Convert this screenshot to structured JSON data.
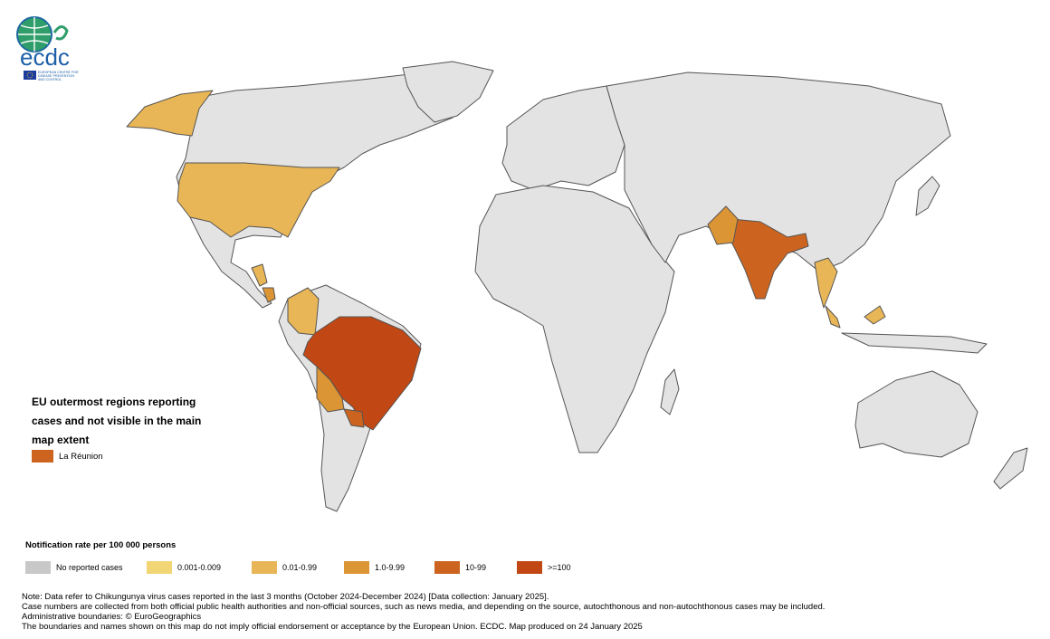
{
  "logo": {
    "name": "ecdc",
    "subtitle_lines": [
      "EUROPEAN CENTRE FOR",
      "DISEASE PREVENTION",
      "AND CONTROL"
    ]
  },
  "outermost": {
    "title": "EU outermost regions reporting cases and not visible in the main map extent",
    "items": [
      {
        "label": "La Réunion",
        "color": "#cc6420"
      }
    ]
  },
  "legend": {
    "title": "Notification rate per 100 000 persons",
    "items": [
      {
        "label": "No reported cases",
        "color": "#c8c8c8"
      },
      {
        "label": "0.001-0.009",
        "color": "#f2d574"
      },
      {
        "label": "0.01-0.99",
        "color": "#e8b656"
      },
      {
        "label": "1.0-9.99",
        "color": "#dc9535"
      },
      {
        "label": "10-99",
        "color": "#cc6420"
      },
      {
        "label": ">=100",
        "color": "#c14714"
      }
    ]
  },
  "map_colors": {
    "land_default": "#e3e3e3",
    "border": "#555555"
  },
  "note_lines": [
    "Note: Data refer to Chikungunya virus cases reported in the last 3 months (October 2024-December 2024) [Data collection: January 2025].",
    "Case numbers are collected from both official public health authorities and non-official sources, such as news media, and depending on the source, autochthonous and non-autochthonous cases may be included.",
    "Administrative boundaries: © EuroGeographics",
    "The boundaries and names shown on this map do not imply official endorsement or acceptance by the European Union. ECDC. Map produced on 24 January 2025"
  ]
}
